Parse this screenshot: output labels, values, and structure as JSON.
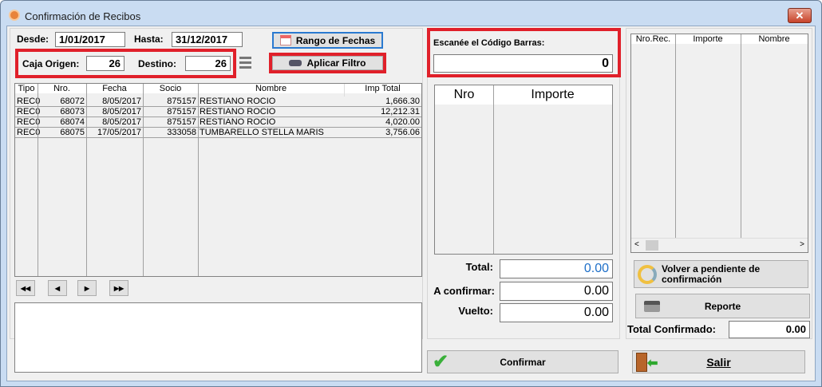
{
  "window": {
    "title": "Confirmación de Recibos",
    "close_label": "✕"
  },
  "filter": {
    "desde_label": "Desde:",
    "desde_value": "1/01/2017",
    "hasta_label": "Hasta:",
    "hasta_value": "31/12/2017",
    "rango_button": "Rango de Fechas",
    "caja_origen_label": "Caja Origen:",
    "caja_origen_value": "26",
    "destino_label": "Destino:",
    "destino_value": "26",
    "aplicar_button": "Aplicar Filtro"
  },
  "receipts": {
    "columns": [
      "Tipo",
      "Nro.",
      "Fecha",
      "Socio",
      "Nombre",
      "Imp Total"
    ],
    "rows": [
      [
        "REC0",
        "68072",
        "8/05/2017",
        "875157",
        "RESTIANO ROCIO",
        "1,666.30"
      ],
      [
        "REC0",
        "68073",
        "8/05/2017",
        "875157",
        "RESTIANO ROCIO",
        "12,212.31"
      ],
      [
        "REC0",
        "68074",
        "8/05/2017",
        "875157",
        "RESTIANO ROCIO",
        "4,020.00"
      ],
      [
        "REC0",
        "68075",
        "17/05/2017",
        "333058",
        "TUMBARELLO STELLA MARIS",
        "3,756.06"
      ]
    ]
  },
  "navigator": {
    "first": "◀◀",
    "prev": "◀",
    "next": "▶",
    "last": "▶▶"
  },
  "memo": {
    "value": ""
  },
  "scan": {
    "label": "Escanée el  Código Barras:",
    "value": "0",
    "columns": [
      "Nro",
      "Importe"
    ]
  },
  "totals": {
    "total_label": "Total:",
    "total_value": "0.00",
    "total_color": "#1e6fc8",
    "confirmar_label": "A confirmar:",
    "confirmar_value": "0.00",
    "vuelto_label": "Vuelto:",
    "vuelto_value": "0.00"
  },
  "confirmed": {
    "columns": [
      "Nro.Rec.",
      "Importe",
      "Nombre"
    ],
    "volver_button": "Volver a pendiente de confirmación",
    "reporte_button": "Reporte",
    "total_confirmado_label": "Total Confirmado:",
    "total_confirmado_value": "0.00"
  },
  "actions": {
    "confirmar_button": "Confirmar",
    "salir_button": "Salir"
  },
  "colors": {
    "highlight": "#e0202a",
    "accent": "#1e6fc8"
  }
}
